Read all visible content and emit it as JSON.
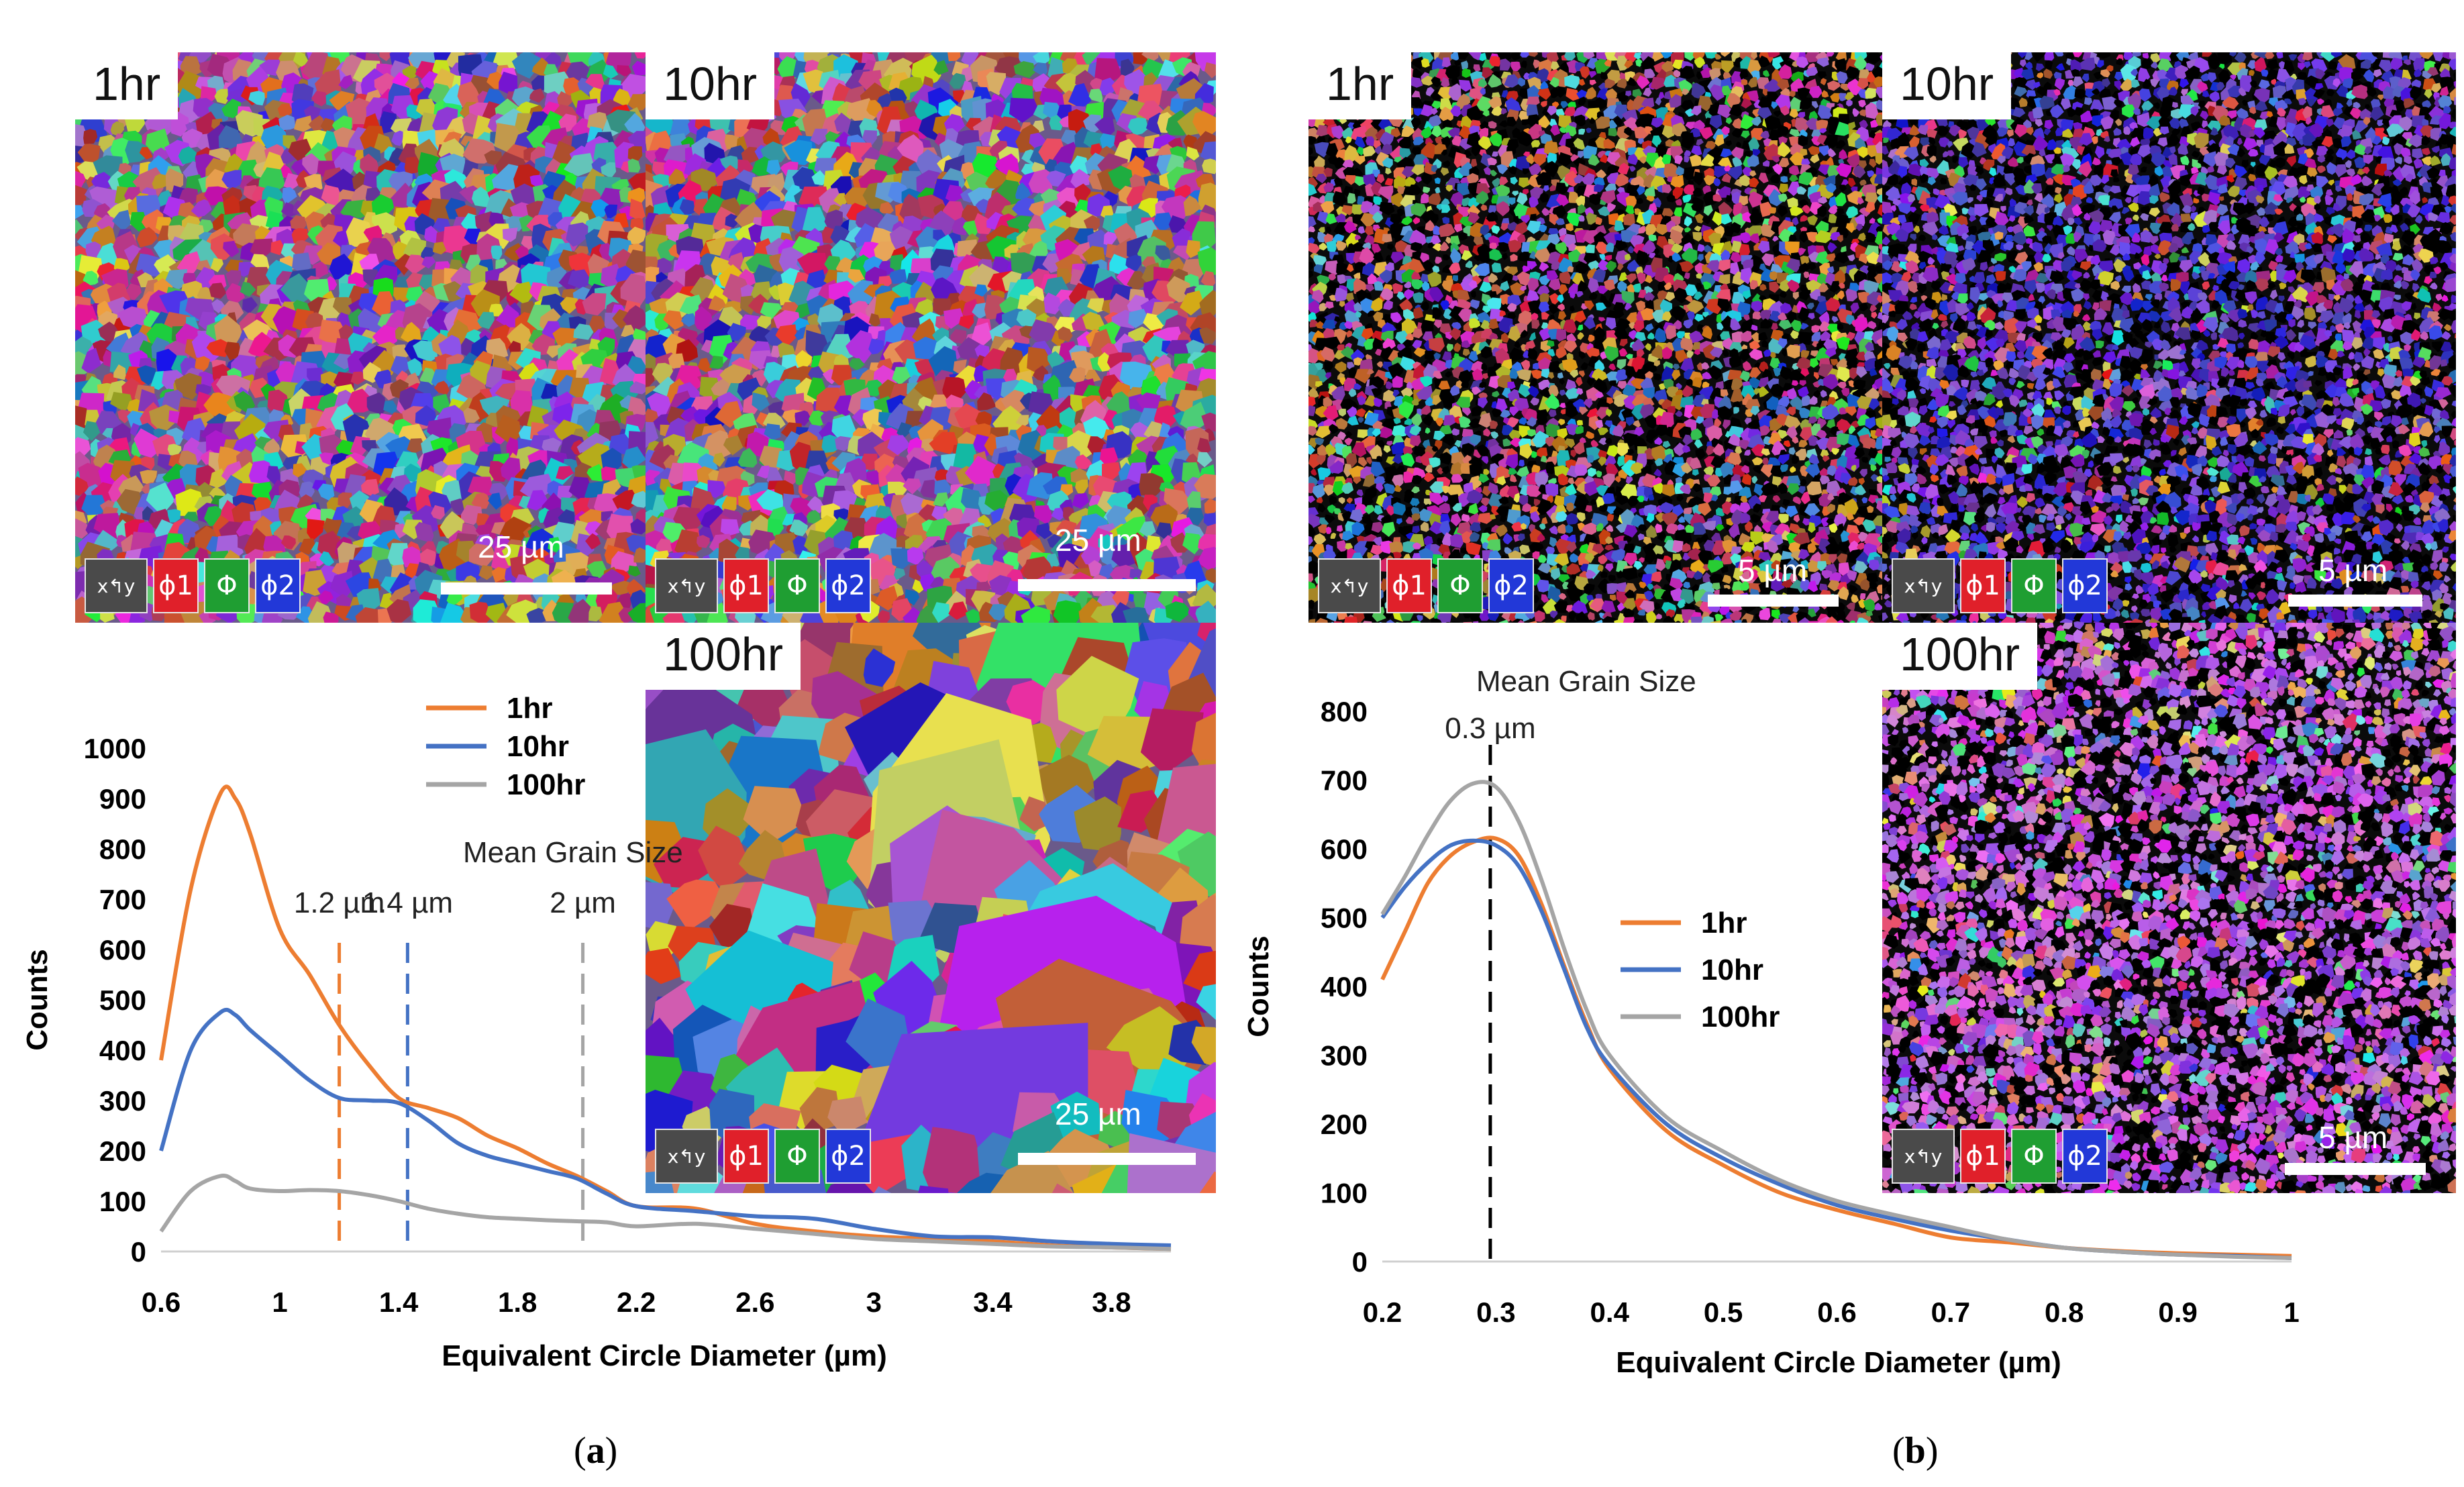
{
  "panel_a": {
    "label": "a",
    "maps": [
      {
        "time": "1hr",
        "scalebar": "25 µm",
        "key": {
          "phi1": "ϕ1",
          "Phi": "Φ",
          "phi2": "ϕ2"
        }
      },
      {
        "time": "10hr",
        "scalebar": "25 µm",
        "key": {
          "phi1": "ϕ1",
          "Phi": "Φ",
          "phi2": "ϕ2"
        }
      },
      {
        "time": "100hr",
        "scalebar": "25 µm",
        "key": {
          "phi1": "ϕ1",
          "Phi": "Φ",
          "phi2": "ϕ2"
        }
      }
    ]
  },
  "panel_b": {
    "label": "b",
    "maps": [
      {
        "time": "1hr",
        "scalebar": "5 µm",
        "key": {
          "phi1": "ϕ1",
          "Phi": "Φ",
          "phi2": "ϕ2"
        }
      },
      {
        "time": "10hr",
        "scalebar": "5 µm",
        "key": {
          "phi1": "ϕ1",
          "Phi": "Φ",
          "phi2": "ϕ2"
        }
      },
      {
        "time": "100hr",
        "scalebar": "5 µm",
        "key": {
          "phi1": "ϕ1",
          "Phi": "Φ",
          "phi2": "ϕ2"
        }
      }
    ]
  },
  "chart_data": [
    {
      "type": "line",
      "panel": "a",
      "title": "",
      "xlabel": "Equivalent Circle Diameter (µm)",
      "ylabel": "Counts",
      "xlim": [
        0.6,
        4.0
      ],
      "ylim": [
        0,
        1000
      ],
      "x_ticks": [
        0.6,
        1,
        1.4,
        1.8,
        2.2,
        2.6,
        3,
        3.4,
        3.8
      ],
      "x_tick_labels": [
        "0.6",
        "1",
        "1.4",
        "1.8",
        "2.2",
        "2.6",
        "3",
        "3.4",
        "3.8"
      ],
      "y_ticks": [
        0,
        100,
        200,
        300,
        400,
        500,
        600,
        700,
        800,
        900,
        1000
      ],
      "y_tick_labels": [
        "0",
        "100",
        "200",
        "300",
        "400",
        "500",
        "600",
        "700",
        "800",
        "900",
        "1000"
      ],
      "legend": "top-center",
      "annotation_title": "Mean Grain Size",
      "mean_lines": [
        {
          "x": 1.2,
          "label": "1.2 µm",
          "color": "#ED7D31"
        },
        {
          "x": 1.43,
          "label": "1.4 µm",
          "color": "#4472C4"
        },
        {
          "x": 2.02,
          "label": "2 µm",
          "color": "#A5A5A5"
        }
      ],
      "series": [
        {
          "name": "1hr",
          "color": "#ED7D31",
          "x": [
            0.6,
            0.7,
            0.8,
            0.85,
            0.9,
            1.0,
            1.1,
            1.2,
            1.3,
            1.4,
            1.5,
            1.6,
            1.7,
            1.8,
            1.9,
            2.0,
            2.1,
            2.2,
            2.4,
            2.6,
            2.8,
            3.0,
            3.2,
            3.4,
            3.6,
            3.8,
            4.0
          ],
          "values": [
            380,
            720,
            910,
            900,
            830,
            640,
            550,
            450,
            370,
            305,
            285,
            265,
            230,
            205,
            175,
            150,
            120,
            90,
            85,
            55,
            40,
            30,
            25,
            20,
            12,
            8,
            5
          ]
        },
        {
          "name": "10hr",
          "color": "#4472C4",
          "x": [
            0.6,
            0.7,
            0.8,
            0.85,
            0.9,
            1.0,
            1.1,
            1.2,
            1.3,
            1.4,
            1.5,
            1.6,
            1.7,
            1.8,
            1.9,
            2.0,
            2.1,
            2.2,
            2.4,
            2.6,
            2.8,
            3.0,
            3.2,
            3.4,
            3.6,
            3.8,
            4.0
          ],
          "values": [
            200,
            400,
            475,
            470,
            440,
            390,
            340,
            305,
            300,
            295,
            260,
            215,
            190,
            175,
            160,
            145,
            115,
            90,
            80,
            70,
            65,
            45,
            30,
            28,
            20,
            15,
            12
          ]
        },
        {
          "name": "100hr",
          "color": "#A5A5A5",
          "x": [
            0.6,
            0.7,
            0.8,
            0.85,
            0.9,
            1.0,
            1.1,
            1.2,
            1.3,
            1.4,
            1.5,
            1.6,
            1.7,
            1.8,
            1.9,
            2.0,
            2.1,
            2.2,
            2.4,
            2.6,
            2.8,
            3.0,
            3.2,
            3.4,
            3.6,
            3.8,
            4.0
          ],
          "values": [
            40,
            120,
            150,
            140,
            125,
            120,
            122,
            120,
            112,
            100,
            85,
            75,
            68,
            65,
            62,
            60,
            58,
            50,
            55,
            45,
            35,
            25,
            20,
            15,
            10,
            8,
            5
          ]
        }
      ]
    },
    {
      "type": "line",
      "panel": "b",
      "title": "",
      "xlabel": "Equivalent Circle Diameter (µm)",
      "ylabel": "Counts",
      "xlim": [
        0.2,
        1.0
      ],
      "ylim": [
        0,
        800
      ],
      "x_ticks": [
        0.2,
        0.3,
        0.4,
        0.5,
        0.6,
        0.7,
        0.8,
        0.9,
        1.0
      ],
      "x_tick_labels": [
        "0.2",
        "0.3",
        "0.4",
        "0.5",
        "0.6",
        "0.7",
        "0.8",
        "0.9",
        "1"
      ],
      "y_ticks": [
        0,
        100,
        200,
        300,
        400,
        500,
        600,
        700,
        800
      ],
      "y_tick_labels": [
        "0",
        "100",
        "200",
        "300",
        "400",
        "500",
        "600",
        "700",
        "800"
      ],
      "legend": "center-right",
      "annotation_title": "Mean Grain Size",
      "mean_lines": [
        {
          "x": 0.295,
          "label": "0.3 µm",
          "color": "#000000"
        }
      ],
      "series": [
        {
          "name": "1hr",
          "color": "#ED7D31",
          "x": [
            0.2,
            0.22,
            0.24,
            0.26,
            0.28,
            0.3,
            0.32,
            0.34,
            0.36,
            0.38,
            0.4,
            0.45,
            0.5,
            0.55,
            0.6,
            0.65,
            0.7,
            0.75,
            0.8,
            0.85,
            0.9,
            0.95,
            1.0
          ],
          "values": [
            410,
            480,
            550,
            590,
            610,
            615,
            590,
            520,
            430,
            345,
            280,
            190,
            140,
            100,
            75,
            55,
            35,
            28,
            20,
            15,
            12,
            10,
            8
          ]
        },
        {
          "name": "10hr",
          "color": "#4472C4",
          "x": [
            0.2,
            0.22,
            0.24,
            0.26,
            0.28,
            0.3,
            0.32,
            0.34,
            0.36,
            0.38,
            0.4,
            0.45,
            0.5,
            0.55,
            0.6,
            0.65,
            0.7,
            0.75,
            0.8,
            0.85,
            0.9,
            0.95,
            1.0
          ],
          "values": [
            500,
            545,
            580,
            605,
            612,
            605,
            575,
            510,
            425,
            340,
            285,
            200,
            150,
            112,
            82,
            62,
            45,
            32,
            20,
            14,
            10,
            8,
            5
          ]
        },
        {
          "name": "100hr",
          "color": "#A5A5A5",
          "x": [
            0.2,
            0.22,
            0.24,
            0.26,
            0.28,
            0.3,
            0.32,
            0.34,
            0.36,
            0.38,
            0.4,
            0.45,
            0.5,
            0.55,
            0.6,
            0.65,
            0.7,
            0.75,
            0.8,
            0.85,
            0.9,
            0.95,
            1.0
          ],
          "values": [
            505,
            560,
            620,
            670,
            695,
            690,
            640,
            555,
            455,
            365,
            300,
            210,
            160,
            118,
            88,
            68,
            50,
            32,
            20,
            14,
            10,
            7,
            5
          ]
        }
      ]
    }
  ]
}
